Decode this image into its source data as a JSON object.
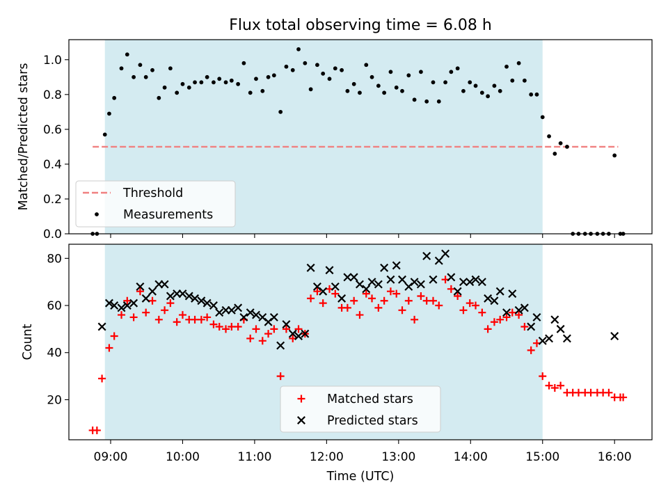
{
  "title": "Flux total observing time = 6.08 h",
  "colors": {
    "observing_window": "#d4ebf1",
    "threshold": "#f08080",
    "measurements": "#000000",
    "matched": "#ff0000",
    "predicted": "#000000"
  },
  "chart_data": [
    {
      "type": "scatter",
      "panel": "top",
      "xlabel": "",
      "ylabel": "Matched/Predicted stars",
      "x_unit": "hours UTC",
      "xlim": [
        8.42,
        16.52
      ],
      "ylim": [
        0.0,
        1.115
      ],
      "yticks": [
        0.0,
        0.2,
        0.4,
        0.6,
        0.8,
        1.0
      ],
      "ytick_labels": [
        "0.0",
        "0.2",
        "0.4",
        "0.6",
        "0.8",
        "1.0"
      ],
      "xticks": [
        9,
        10,
        11,
        12,
        13,
        14,
        15,
        16
      ],
      "shaded_interval": [
        8.92,
        15.0
      ],
      "threshold": {
        "label": "Threshold",
        "y": 0.5,
        "x_range": [
          8.75,
          16.05
        ],
        "style": "dashed"
      },
      "legend": {
        "position": "lower-left",
        "entries": [
          "Threshold",
          "Measurements"
        ]
      },
      "series": [
        {
          "name": "Measurements",
          "marker": "dot",
          "points": [
            [
              8.75,
              0.0
            ],
            [
              8.81,
              0.0
            ],
            [
              8.92,
              0.57
            ],
            [
              8.98,
              0.69
            ],
            [
              9.05,
              0.78
            ],
            [
              9.15,
              0.95
            ],
            [
              9.23,
              1.03
            ],
            [
              9.32,
              0.9
            ],
            [
              9.41,
              0.97
            ],
            [
              9.49,
              0.9
            ],
            [
              9.58,
              0.94
            ],
            [
              9.67,
              0.78
            ],
            [
              9.75,
              0.84
            ],
            [
              9.83,
              0.95
            ],
            [
              9.92,
              0.81
            ],
            [
              10.0,
              0.86
            ],
            [
              10.09,
              0.84
            ],
            [
              10.17,
              0.87
            ],
            [
              10.26,
              0.87
            ],
            [
              10.34,
              0.9
            ],
            [
              10.43,
              0.87
            ],
            [
              10.51,
              0.89
            ],
            [
              10.6,
              0.87
            ],
            [
              10.68,
              0.88
            ],
            [
              10.77,
              0.86
            ],
            [
              10.85,
              0.98
            ],
            [
              10.94,
              0.81
            ],
            [
              11.02,
              0.89
            ],
            [
              11.11,
              0.82
            ],
            [
              11.19,
              0.9
            ],
            [
              11.27,
              0.91
            ],
            [
              11.36,
              0.7
            ],
            [
              11.44,
              0.96
            ],
            [
              11.53,
              0.94
            ],
            [
              11.61,
              1.06
            ],
            [
              11.7,
              0.98
            ],
            [
              11.78,
              0.83
            ],
            [
              11.87,
              0.97
            ],
            [
              11.95,
              0.92
            ],
            [
              12.04,
              0.89
            ],
            [
              12.12,
              0.95
            ],
            [
              12.21,
              0.94
            ],
            [
              12.29,
              0.82
            ],
            [
              12.38,
              0.86
            ],
            [
              12.46,
              0.81
            ],
            [
              12.55,
              0.97
            ],
            [
              12.63,
              0.9
            ],
            [
              12.72,
              0.85
            ],
            [
              12.8,
              0.81
            ],
            [
              12.89,
              0.93
            ],
            [
              12.97,
              0.84
            ],
            [
              13.05,
              0.82
            ],
            [
              13.14,
              0.91
            ],
            [
              13.22,
              0.77
            ],
            [
              13.31,
              0.93
            ],
            [
              13.39,
              0.76
            ],
            [
              13.48,
              0.87
            ],
            [
              13.56,
              0.76
            ],
            [
              13.65,
              0.87
            ],
            [
              13.73,
              0.93
            ],
            [
              13.82,
              0.95
            ],
            [
              13.9,
              0.82
            ],
            [
              13.99,
              0.87
            ],
            [
              14.07,
              0.85
            ],
            [
              14.16,
              0.81
            ],
            [
              14.24,
              0.79
            ],
            [
              14.33,
              0.85
            ],
            [
              14.41,
              0.82
            ],
            [
              14.5,
              0.96
            ],
            [
              14.58,
              0.88
            ],
            [
              14.67,
              0.98
            ],
            [
              14.75,
              0.88
            ],
            [
              14.84,
              0.8
            ],
            [
              14.92,
              0.8
            ],
            [
              15.0,
              0.67
            ],
            [
              15.09,
              0.56
            ],
            [
              15.17,
              0.46
            ],
            [
              15.25,
              0.52
            ],
            [
              15.34,
              0.5
            ],
            [
              15.42,
              0.0
            ],
            [
              15.5,
              0.0
            ],
            [
              15.59,
              0.0
            ],
            [
              15.67,
              0.0
            ],
            [
              15.76,
              0.0
            ],
            [
              15.84,
              0.0
            ],
            [
              15.92,
              0.0
            ],
            [
              16.0,
              0.45
            ],
            [
              16.08,
              0.0
            ],
            [
              16.12,
              0.0
            ]
          ]
        }
      ]
    },
    {
      "type": "scatter",
      "panel": "bottom",
      "xlabel": "Time (UTC)",
      "ylabel": "Count",
      "x_unit": "hours UTC",
      "xlim": [
        8.42,
        16.52
      ],
      "ylim": [
        3.0,
        86.0
      ],
      "yticks": [
        20,
        40,
        60,
        80
      ],
      "ytick_labels": [
        "20",
        "40",
        "60",
        "80"
      ],
      "xticks": [
        9,
        10,
        11,
        12,
        13,
        14,
        15,
        16
      ],
      "xtick_labels": [
        "09:00",
        "10:00",
        "11:00",
        "12:00",
        "13:00",
        "14:00",
        "15:00",
        "16:00"
      ],
      "shaded_interval": [
        8.92,
        15.0
      ],
      "legend": {
        "position": "lower-center",
        "entries": [
          "Matched stars",
          "Predicted stars"
        ]
      },
      "series": [
        {
          "name": "Matched stars",
          "marker": "plus",
          "points": [
            [
              8.75,
              7
            ],
            [
              8.81,
              7
            ],
            [
              8.88,
              29
            ],
            [
              8.98,
              42
            ],
            [
              9.05,
              47
            ],
            [
              9.15,
              56
            ],
            [
              9.23,
              62
            ],
            [
              9.32,
              55
            ],
            [
              9.41,
              66
            ],
            [
              9.49,
              57
            ],
            [
              9.58,
              62
            ],
            [
              9.67,
              54
            ],
            [
              9.75,
              58
            ],
            [
              9.83,
              61
            ],
            [
              9.92,
              53
            ],
            [
              10.0,
              56
            ],
            [
              10.09,
              54
            ],
            [
              10.17,
              54
            ],
            [
              10.26,
              54
            ],
            [
              10.34,
              55
            ],
            [
              10.43,
              52
            ],
            [
              10.51,
              51
            ],
            [
              10.6,
              50
            ],
            [
              10.68,
              51
            ],
            [
              10.77,
              51
            ],
            [
              10.85,
              54
            ],
            [
              10.94,
              46
            ],
            [
              11.02,
              50
            ],
            [
              11.11,
              45
            ],
            [
              11.19,
              48
            ],
            [
              11.27,
              50
            ],
            [
              11.36,
              30
            ],
            [
              11.44,
              50
            ],
            [
              11.53,
              46
            ],
            [
              11.61,
              50
            ],
            [
              11.7,
              48
            ],
            [
              11.78,
              63
            ],
            [
              11.87,
              66
            ],
            [
              11.95,
              61
            ],
            [
              12.04,
              67
            ],
            [
              12.12,
              65
            ],
            [
              12.21,
              59
            ],
            [
              12.29,
              59
            ],
            [
              12.38,
              62
            ],
            [
              12.46,
              56
            ],
            [
              12.55,
              65
            ],
            [
              12.63,
              63
            ],
            [
              12.72,
              59
            ],
            [
              12.8,
              62
            ],
            [
              12.89,
              66
            ],
            [
              12.97,
              65
            ],
            [
              13.05,
              58
            ],
            [
              13.14,
              62
            ],
            [
              13.22,
              54
            ],
            [
              13.31,
              64
            ],
            [
              13.39,
              62
            ],
            [
              13.48,
              62
            ],
            [
              13.56,
              60
            ],
            [
              13.65,
              71
            ],
            [
              13.73,
              67
            ],
            [
              13.82,
              64
            ],
            [
              13.9,
              58
            ],
            [
              13.99,
              61
            ],
            [
              14.07,
              60
            ],
            [
              14.16,
              57
            ],
            [
              14.24,
              50
            ],
            [
              14.33,
              53
            ],
            [
              14.41,
              54
            ],
            [
              14.5,
              55
            ],
            [
              14.58,
              57
            ],
            [
              14.67,
              56
            ],
            [
              14.75,
              51
            ],
            [
              14.84,
              41
            ],
            [
              14.92,
              44
            ],
            [
              15.0,
              30
            ],
            [
              15.09,
              26
            ],
            [
              15.17,
              25
            ],
            [
              15.25,
              26
            ],
            [
              15.34,
              23
            ],
            [
              15.42,
              23
            ],
            [
              15.5,
              23
            ],
            [
              15.59,
              23
            ],
            [
              15.67,
              23
            ],
            [
              15.76,
              23
            ],
            [
              15.84,
              23
            ],
            [
              15.92,
              23
            ],
            [
              16.0,
              21
            ],
            [
              16.08,
              21
            ],
            [
              16.12,
              21
            ]
          ]
        },
        {
          "name": "Predicted stars",
          "marker": "x",
          "points": [
            [
              8.88,
              51
            ],
            [
              8.98,
              61
            ],
            [
              9.05,
              60
            ],
            [
              9.15,
              59
            ],
            [
              9.23,
              60
            ],
            [
              9.32,
              61
            ],
            [
              9.41,
              68
            ],
            [
              9.49,
              63
            ],
            [
              9.58,
              66
            ],
            [
              9.67,
              69
            ],
            [
              9.75,
              69
            ],
            [
              9.83,
              64
            ],
            [
              9.92,
              65
            ],
            [
              10.0,
              65
            ],
            [
              10.09,
              64
            ],
            [
              10.17,
              63
            ],
            [
              10.26,
              62
            ],
            [
              10.34,
              61
            ],
            [
              10.43,
              60
            ],
            [
              10.51,
              57
            ],
            [
              10.6,
              58
            ],
            [
              10.68,
              58
            ],
            [
              10.77,
              59
            ],
            [
              10.85,
              55
            ],
            [
              10.94,
              57
            ],
            [
              11.02,
              56
            ],
            [
              11.11,
              55
            ],
            [
              11.19,
              53
            ],
            [
              11.27,
              55
            ],
            [
              11.36,
              43
            ],
            [
              11.44,
              52
            ],
            [
              11.53,
              48
            ],
            [
              11.61,
              47
            ],
            [
              11.7,
              48
            ],
            [
              11.78,
              76
            ],
            [
              11.87,
              68
            ],
            [
              11.95,
              66
            ],
            [
              12.04,
              75
            ],
            [
              12.12,
              68
            ],
            [
              12.21,
              63
            ],
            [
              12.29,
              72
            ],
            [
              12.38,
              72
            ],
            [
              12.46,
              69
            ],
            [
              12.55,
              67
            ],
            [
              12.63,
              70
            ],
            [
              12.72,
              69
            ],
            [
              12.8,
              76
            ],
            [
              12.89,
              71
            ],
            [
              12.97,
              77
            ],
            [
              13.05,
              71
            ],
            [
              13.14,
              68
            ],
            [
              13.22,
              70
            ],
            [
              13.31,
              69
            ],
            [
              13.39,
              81
            ],
            [
              13.48,
              71
            ],
            [
              13.56,
              79
            ],
            [
              13.65,
              82
            ],
            [
              13.73,
              72
            ],
            [
              13.82,
              66
            ],
            [
              13.9,
              70
            ],
            [
              13.99,
              70
            ],
            [
              14.07,
              71
            ],
            [
              14.16,
              70
            ],
            [
              14.24,
              63
            ],
            [
              14.33,
              62
            ],
            [
              14.41,
              66
            ],
            [
              14.5,
              57
            ],
            [
              14.58,
              65
            ],
            [
              14.67,
              58
            ],
            [
              14.75,
              59
            ],
            [
              14.84,
              51
            ],
            [
              14.92,
              55
            ],
            [
              15.0,
              45
            ],
            [
              15.09,
              46
            ],
            [
              15.17,
              54
            ],
            [
              15.25,
              50
            ],
            [
              15.34,
              46
            ],
            [
              16.0,
              47
            ]
          ]
        }
      ]
    }
  ]
}
